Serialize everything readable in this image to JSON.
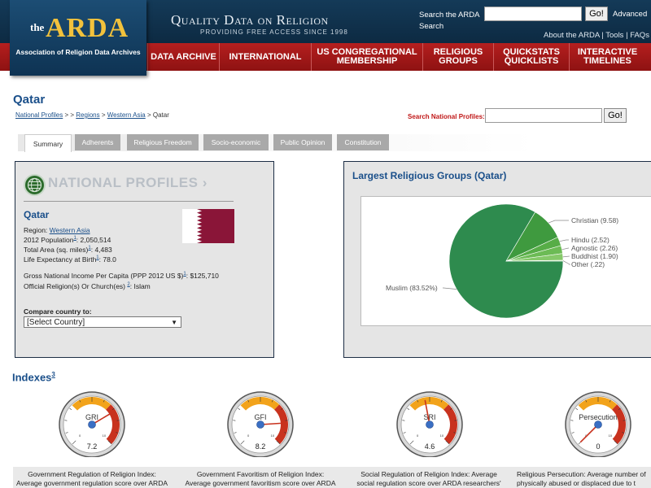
{
  "header": {
    "logo_the": "the",
    "logo_arda": "ARDA",
    "logo_sub": "Association of Religion Data Archives",
    "tagline_main": "Quality Data on Religion",
    "tagline_sub": "PROVIDING FREE ACCESS SINCE 1998",
    "search_label": "Search the ARDA Search",
    "search_go": "Go!",
    "advanced": "Advanced",
    "util_about": "About the ARDA",
    "util_tools": "Tools",
    "util_faqs": "FAQs",
    "sep": "|"
  },
  "nav": [
    {
      "label": "DATA ARCHIVE"
    },
    {
      "label": "INTERNATIONAL"
    },
    {
      "label": "US CONGREGATIONAL MEMBERSHIP"
    },
    {
      "label": "RELIGIOUS GROUPS"
    },
    {
      "label": "QUICKSTATS QUICKLISTS"
    },
    {
      "label": "INTERACTIVE TIMELINES"
    }
  ],
  "page": {
    "title": "Qatar",
    "breadcrumb": {
      "national_profiles": "National Profiles",
      "sep1": " > > ",
      "regions": "Regions",
      "sep2": " > ",
      "western_asia": "Western Asia",
      "sep3": " > ",
      "current": "Qatar"
    },
    "np_search_label": "Search National Profiles:",
    "np_go": "Go!"
  },
  "tabs": [
    {
      "label": "Summary",
      "active": true
    },
    {
      "label": "Adherents"
    },
    {
      "label": "Religious Freedom"
    },
    {
      "label": "Socio-economic"
    },
    {
      "label": "Public Opinion"
    },
    {
      "label": "Constitution"
    }
  ],
  "profile": {
    "heading": "NATIONAL PROFILES",
    "heading_arrow": "›",
    "country": "Qatar",
    "region_label": "Region: ",
    "region_value": "Western Asia",
    "population_label": "2012 Population",
    "population_note": "1",
    "population_value": ": 2,050,514",
    "area_label": "Total Area (sq. miles)",
    "area_note": "1",
    "area_value": ": 4,483",
    "life_label": "Life Expectancy at Birth",
    "life_note": "1",
    "life_value": ": 78.0",
    "gni_label": "Gross National Income Per Capita (PPP 2012 US $)",
    "gni_note": "1",
    "gni_value": ": $125,710",
    "official_label": "Official Religion(s) Or Church(es) ",
    "official_note": "2",
    "official_value": ": Islam",
    "compare_label": "Compare country to:",
    "compare_selected": "[Select Country]",
    "flag_color": "#8a1538"
  },
  "chart_data": {
    "type": "pie",
    "title": "Largest Religious Groups (Qatar)",
    "labels": [
      "Muslim",
      "Christian",
      "Hindu",
      "Agnostic",
      "Buddhist",
      "Other"
    ],
    "values": [
      83.52,
      9.58,
      2.52,
      2.26,
      1.9,
      0.22
    ],
    "display_labels": [
      "Muslim (83.52%)",
      "Christian (9.58)",
      "Hindu (2.52)",
      "Agnostic (2.26)",
      "Buddhist (1.90)",
      "Other (.22)"
    ],
    "colors": [
      "#2e8b4e",
      "#3f9a3f",
      "#57ad47",
      "#6cbb55",
      "#86c96a",
      "#a2d68a"
    ]
  },
  "indexes": {
    "title": "Indexes",
    "note": "3",
    "gauges": [
      {
        "label": "GRI",
        "value": 7.2,
        "display": "7.2",
        "max": 10,
        "caption_1": "Government Regulation of Religion Index:",
        "caption_2": "Average government regulation score over ARDA"
      },
      {
        "label": "GFI",
        "value": 8.2,
        "display": "8.2",
        "max": 10,
        "caption_1": "Government Favoritism of Religion Index:",
        "caption_2": "Average government favoritism score over ARDA"
      },
      {
        "label": "SRI",
        "value": 4.6,
        "display": "4.6",
        "max": 10,
        "caption_1": "Social Regulation of Religion Index: Average",
        "caption_2": "social regulation score over ARDA researchers'"
      },
      {
        "label": "Persecution",
        "value": 0,
        "display": "0",
        "max": 10,
        "caption_1": "Religious Persecution: Average number of",
        "caption_2": "physically abused or displaced due to t"
      }
    ],
    "scale_min": "0",
    "scale_max": "10"
  }
}
